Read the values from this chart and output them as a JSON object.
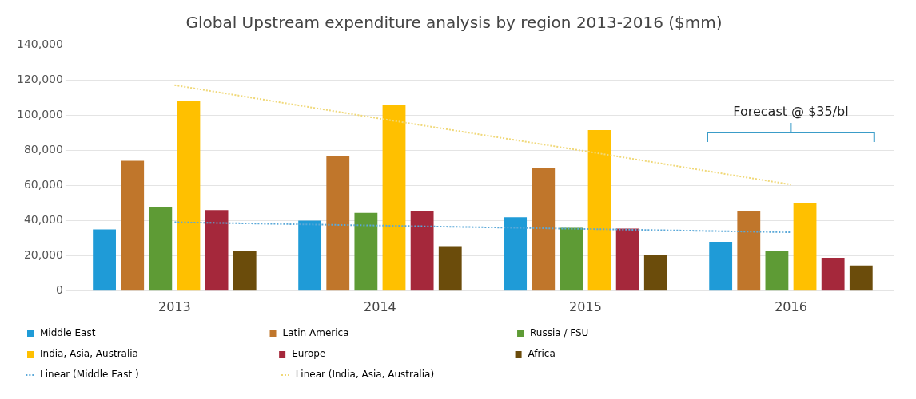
{
  "chart_data": {
    "type": "bar",
    "title": "Global Upstream expenditure analysis by region 2013-2016 ($mm)",
    "categories": [
      "2013",
      "2014",
      "2015",
      "2016"
    ],
    "series": [
      {
        "name": "Middle East",
        "color": "#1f9bd7",
        "values": [
          35000,
          40000,
          42000,
          28000
        ]
      },
      {
        "name": "Latin America",
        "color": "#c0762b",
        "values": [
          74000,
          76500,
          70000,
          45500
        ]
      },
      {
        "name": "Russia / FSU",
        "color": "#5e9b35",
        "values": [
          48000,
          44500,
          36000,
          23000
        ]
      },
      {
        "name": "India, Asia, Australia",
        "color": "#ffc000",
        "values": [
          108000,
          106000,
          91500,
          50000
        ]
      },
      {
        "name": "Europe",
        "color": "#a5283b",
        "values": [
          46000,
          45500,
          35500,
          19000
        ]
      },
      {
        "name": "Africa",
        "color": "#6b4c0b",
        "values": [
          23000,
          25500,
          20500,
          14500
        ]
      },
      {
        "name": "Linear (Middle East )",
        "type": "line",
        "color": "#5aa8d8",
        "line_style": "dotted",
        "marker": "none",
        "values": [
          39100,
          37200,
          35300,
          33400
        ]
      },
      {
        "name": "Linear (India, Asia, Australia)",
        "type": "line",
        "color": "#f0d878",
        "line_style": "dotted",
        "marker": "none",
        "values": [
          117000,
          98000,
          79500,
          60500
        ]
      }
    ],
    "ylim": [
      0,
      140000
    ],
    "yticks": [
      0,
      {
        "value": 20000,
        "label": "20,000"
      },
      {
        "value": 40000,
        "label": "40,000"
      },
      {
        "value": 60000,
        "label": "60,000"
      },
      {
        "value": 80000,
        "label": "80,000"
      },
      {
        "value": 100000,
        "label": "100,000"
      },
      {
        "value": 120000,
        "label": "120,000"
      },
      {
        "value": 140000,
        "label": "140,000"
      }
    ],
    "grid": "y",
    "legend": "bottom",
    "annotations": [
      "Forecast @ $35/bl"
    ]
  }
}
